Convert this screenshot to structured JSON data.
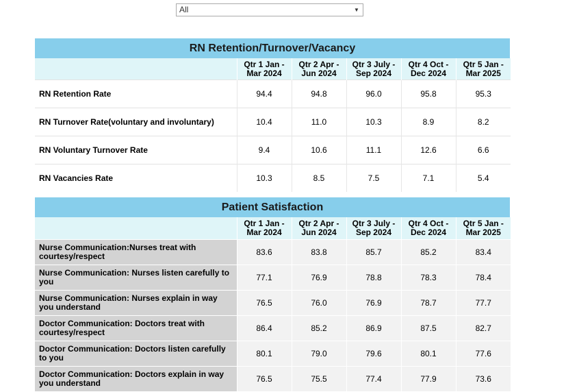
{
  "filter": {
    "selected": "All"
  },
  "quarters": [
    [
      "Qtr 1 Jan -",
      "Mar 2024"
    ],
    [
      "Qtr 2 Apr -",
      "Jun 2024"
    ],
    [
      "Qtr 3 July -",
      "Sep 2024"
    ],
    [
      "Qtr 4 Oct -",
      "Dec 2024"
    ],
    [
      "Qtr 5 Jan -",
      "Mar 2025"
    ]
  ],
  "retention": {
    "title": "RN Retention/Turnover/Vacancy",
    "rows": [
      {
        "label": "RN Retention Rate",
        "values": [
          "94.4",
          "94.8",
          "96.0",
          "95.8",
          "95.3"
        ]
      },
      {
        "label": "RN Turnover Rate(voluntary and involuntary)",
        "values": [
          "10.4",
          "11.0",
          "10.3",
          "8.9",
          "8.2"
        ]
      },
      {
        "label": "RN Voluntary Turnover Rate",
        "values": [
          "9.4",
          "10.6",
          "11.1",
          "12.6",
          "6.6"
        ]
      },
      {
        "label": "RN Vacancies Rate",
        "values": [
          "10.3",
          "8.5",
          "7.5",
          "7.1",
          "5.4"
        ]
      }
    ]
  },
  "satisfaction": {
    "title": "Patient Satisfaction",
    "rows": [
      {
        "label": "Nurse Communication:Nurses treat with courtesy/respect",
        "values": [
          "83.6",
          "83.8",
          "85.7",
          "85.2",
          "83.4"
        ]
      },
      {
        "label": "Nurse Communication: Nurses listen carefully to you",
        "values": [
          "77.1",
          "76.9",
          "78.8",
          "78.3",
          "78.4"
        ]
      },
      {
        "label": "Nurse Communication: Nurses explain in way you understand",
        "values": [
          "76.5",
          "76.0",
          "76.9",
          "78.7",
          "77.7"
        ]
      },
      {
        "label": "Doctor Communication: Doctors treat with courtesy/respect",
        "values": [
          "86.4",
          "85.2",
          "86.9",
          "87.5",
          "82.7"
        ]
      },
      {
        "label": "Doctor Communication: Doctors listen carefully to you",
        "values": [
          "80.1",
          "79.0",
          "79.6",
          "80.1",
          "77.6"
        ]
      },
      {
        "label": "Doctor Communication: Doctors explain in way you understand",
        "values": [
          "76.5",
          "75.5",
          "77.4",
          "77.9",
          "73.6"
        ]
      }
    ]
  }
}
